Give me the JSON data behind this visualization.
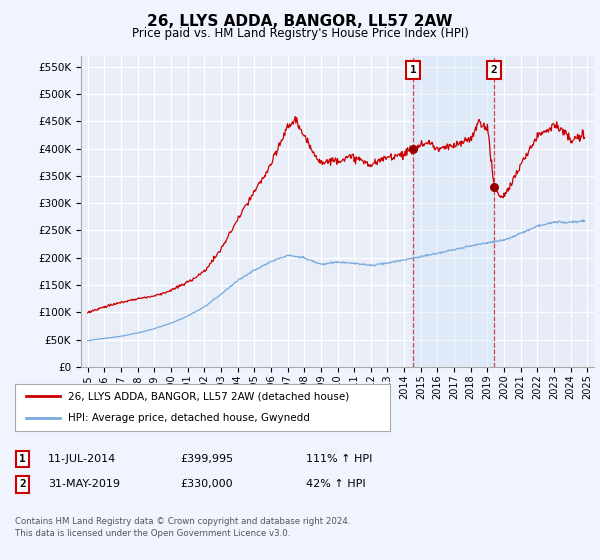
{
  "title": "26, LLYS ADDA, BANGOR, LL57 2AW",
  "subtitle": "Price paid vs. HM Land Registry's House Price Index (HPI)",
  "ylim": [
    0,
    570000
  ],
  "yticks": [
    0,
    50000,
    100000,
    150000,
    200000,
    250000,
    300000,
    350000,
    400000,
    450000,
    500000,
    550000
  ],
  "ytick_labels": [
    "£0",
    "£50K",
    "£100K",
    "£150K",
    "£200K",
    "£250K",
    "£300K",
    "£350K",
    "£400K",
    "£450K",
    "£500K",
    "£550K"
  ],
  "background_color": "#f0f4ff",
  "plot_bg_color": "#e8edf8",
  "grid_color": "#d0d8ec",
  "red_line_color": "#cc0000",
  "blue_line_color": "#7aaadd",
  "marker1_date": 2014.54,
  "marker1_price": 399995,
  "marker2_date": 2019.41,
  "marker2_price": 330000,
  "vline_color": "#cc0000",
  "vspan_color": "#d0e4f8",
  "legend_line1": "26, LLYS ADDA, BANGOR, LL57 2AW (detached house)",
  "legend_line2": "HPI: Average price, detached house, Gwynedd",
  "footer": "Contains HM Land Registry data © Crown copyright and database right 2024.\nThis data is licensed under the Open Government Licence v3.0."
}
